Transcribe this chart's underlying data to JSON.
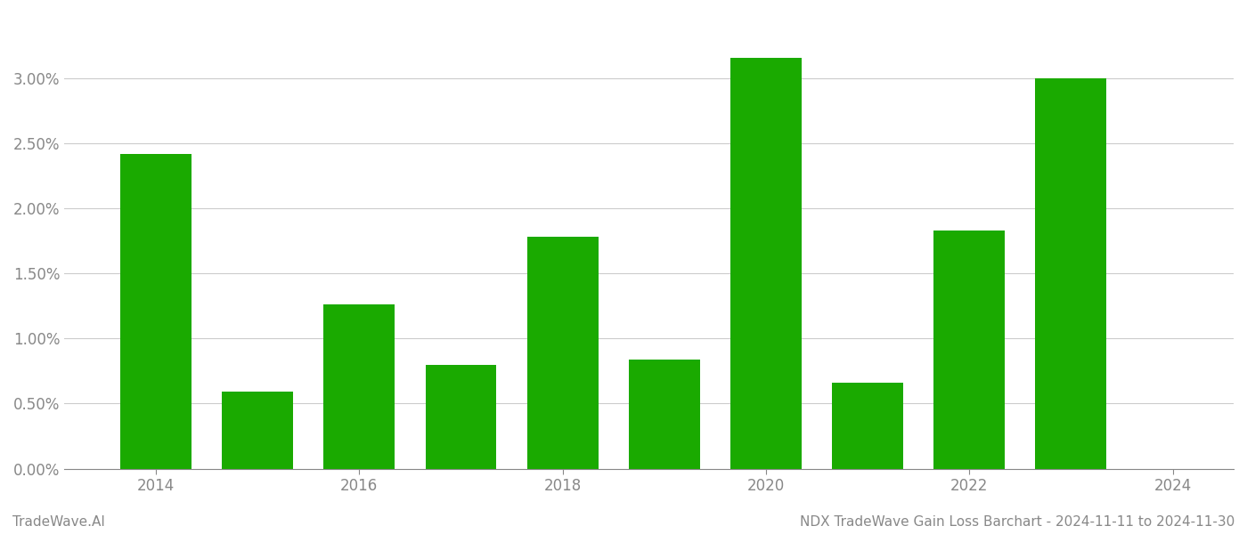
{
  "years": [
    2014,
    2015,
    2016,
    2017,
    2018,
    2019,
    2020,
    2021,
    2022,
    2023
  ],
  "values": [
    0.0242,
    0.0059,
    0.0126,
    0.008,
    0.0178,
    0.0084,
    0.0316,
    0.0066,
    0.0183,
    0.03
  ],
  "bar_color": "#1aaa00",
  "background_color": "#ffffff",
  "grid_color": "#cccccc",
  "ylim_min": 0.0,
  "ylim_max": 0.035,
  "xlim_min": 2013.1,
  "xlim_max": 2024.6,
  "bar_width": 0.7,
  "xticks": [
    2014,
    2016,
    2018,
    2020,
    2022,
    2024
  ],
  "yticks": [
    0.0,
    0.005,
    0.01,
    0.015,
    0.02,
    0.025,
    0.03
  ],
  "tick_label_color": "#888888",
  "tick_label_fontsize": 12,
  "footer_left": "TradeWave.AI",
  "footer_right": "NDX TradeWave Gain Loss Barchart - 2024-11-11 to 2024-11-30",
  "footer_color": "#888888",
  "footer_fontsize": 11
}
